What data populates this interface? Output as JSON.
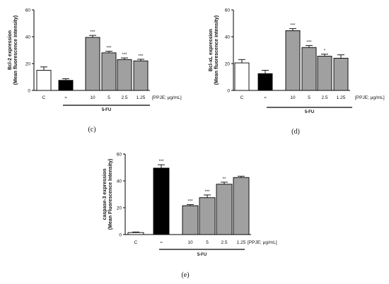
{
  "chart_data": [
    {
      "type": "bar",
      "panel_label": "(c)",
      "ylabel_line1": "Bcl-2 expression",
      "ylabel_line2": "(Mean fluorescence intensity)",
      "ylim": [
        0,
        60
      ],
      "yticks": [
        "0",
        "20",
        "40",
        "60"
      ],
      "categories": [
        "C",
        "",
        "10",
        "5",
        "2.5",
        "1.25"
      ],
      "values": [
        15,
        7.5,
        39.5,
        28,
        23,
        22
      ],
      "errors": [
        2.5,
        1.2,
        1.5,
        1.2,
        1.2,
        1.2
      ],
      "significance": [
        "",
        "",
        "***",
        "***",
        "***",
        "***"
      ],
      "colors": [
        "#ffffff",
        "#000000",
        "#a0a0a0",
        "#a0a0a0",
        "#a0a0a0",
        "#a0a0a0"
      ],
      "group_label": "5-FU",
      "unit_label": "[PPJE; μg/mL]"
    },
    {
      "type": "bar",
      "panel_label": "(d)",
      "ylabel_line1": "Bcl-xL expression",
      "ylabel_line2": "(Mean fluorescence intensity)",
      "ylim": [
        0,
        60
      ],
      "yticks": [
        "0",
        "20",
        "40",
        "60"
      ],
      "categories": [
        "C",
        "",
        "10",
        "5",
        "2.5",
        "1.25"
      ],
      "values": [
        20.5,
        12.5,
        44.5,
        32,
        25.5,
        24
      ],
      "errors": [
        2.5,
        2.5,
        1.5,
        1.5,
        1.5,
        2.5
      ],
      "significance": [
        "",
        "",
        "***",
        "***",
        "*",
        ""
      ],
      "colors": [
        "#ffffff",
        "#000000",
        "#a0a0a0",
        "#a0a0a0",
        "#a0a0a0",
        "#a0a0a0"
      ],
      "group_label": "5-FU",
      "unit_label": "[PPJE; μg/mL]"
    },
    {
      "type": "bar",
      "panel_label": "(e)",
      "ylabel_line1": "caspase-3 expression",
      "ylabel_line2": "(Mean Fluorescence Intensity)",
      "ylim": [
        0,
        60
      ],
      "yticks": [
        "0",
        "20",
        "40",
        "60"
      ],
      "categories": [
        "C",
        "",
        "10",
        "5",
        "2.5",
        "1.25"
      ],
      "values": [
        1.5,
        49.5,
        21.5,
        27.5,
        37.5,
        42.5
      ],
      "errors": [
        0.4,
        2.5,
        0.8,
        2,
        1.5,
        1
      ],
      "significance": [
        "",
        "***",
        "***",
        "***",
        "**",
        ""
      ],
      "colors": [
        "#ffffff",
        "#000000",
        "#a0a0a0",
        "#a0a0a0",
        "#a0a0a0",
        "#a0a0a0"
      ],
      "group_label": "5-FU",
      "unit_label": "[PPJE; μg/mL]"
    }
  ]
}
